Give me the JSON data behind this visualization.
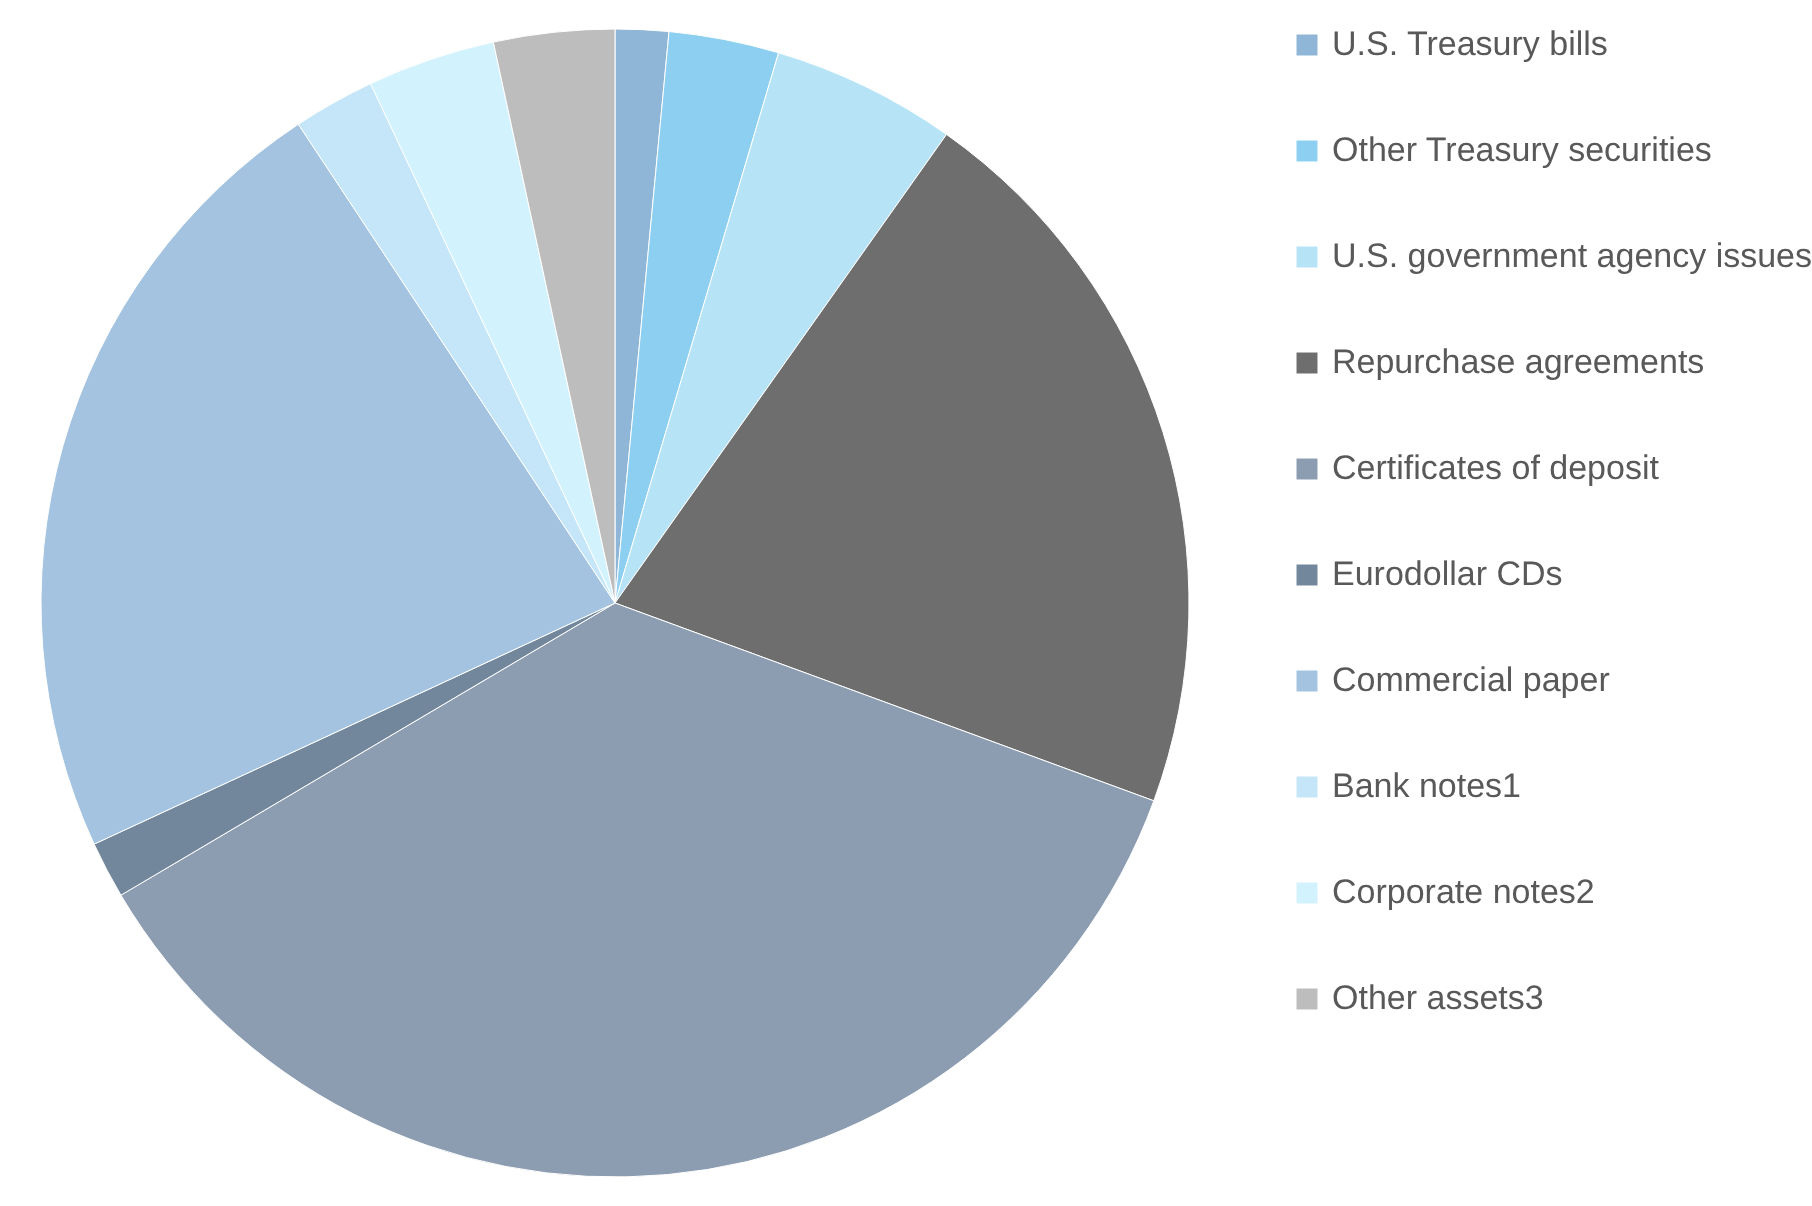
{
  "chart_data": {
    "type": "pie",
    "categories": [
      "U.S. Treasury bills",
      "Other Treasury securities",
      "U.S. government agency issues",
      "Repurchase agreements",
      "Certificates of deposit",
      "Eurodollar CDs",
      "Commercial paper",
      "Bank notes1",
      "Corporate notes2",
      "Other assets3"
    ],
    "values": [
      1.5,
      3.1,
      5.2,
      20.8,
      35.9,
      1.6,
      22.6,
      2.3,
      3.6,
      3.4
    ],
    "colors": [
      "#8fb6d6",
      "#8ccff0",
      "#b7e3f7",
      "#6e6e6e",
      "#8d9db1",
      "#72879c",
      "#a3c3e1",
      "#c4e6f8",
      "#d2f2fd",
      "#bdbdbd"
    ],
    "legend": "right"
  }
}
